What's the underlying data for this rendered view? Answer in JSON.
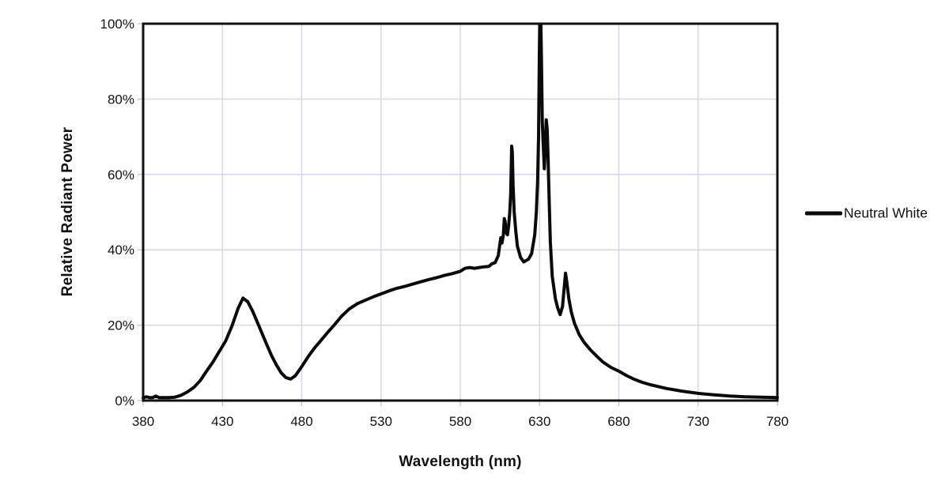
{
  "chart_data": {
    "type": "line",
    "title": "",
    "xlabel": "Wavelength (nm)",
    "ylabel": "Relative Radiant Power",
    "xlim": [
      380,
      780
    ],
    "ylim": [
      0,
      100
    ],
    "xticks": [
      380,
      430,
      480,
      530,
      580,
      630,
      680,
      730,
      780
    ],
    "yticks": [
      0,
      20,
      40,
      60,
      80,
      100
    ],
    "ytick_labels": [
      "0%",
      "20%",
      "40%",
      "60%",
      "80%",
      "100%"
    ],
    "grid": true,
    "legend_position": "right",
    "series": [
      {
        "name": "Neutral White",
        "color": "#0a0a0a",
        "points": [
          [
            380,
            0.7
          ],
          [
            382,
            1.0
          ],
          [
            384,
            0.8
          ],
          [
            386,
            0.8
          ],
          [
            388,
            1.2
          ],
          [
            390,
            0.8
          ],
          [
            393,
            0.8
          ],
          [
            396,
            0.8
          ],
          [
            400,
            0.9
          ],
          [
            404,
            1.4
          ],
          [
            408,
            2.3
          ],
          [
            412,
            3.5
          ],
          [
            416,
            5.3
          ],
          [
            420,
            7.8
          ],
          [
            424,
            10.2
          ],
          [
            428,
            13.0
          ],
          [
            432,
            15.8
          ],
          [
            436,
            19.8
          ],
          [
            440,
            24.6
          ],
          [
            443,
            27.2
          ],
          [
            446,
            26.2
          ],
          [
            449,
            23.8
          ],
          [
            452,
            20.8
          ],
          [
            455,
            17.8
          ],
          [
            458,
            14.8
          ],
          [
            461,
            11.9
          ],
          [
            464,
            9.5
          ],
          [
            467,
            7.4
          ],
          [
            470,
            6.1
          ],
          [
            473,
            5.7
          ],
          [
            476,
            6.6
          ],
          [
            480,
            9.0
          ],
          [
            484,
            11.6
          ],
          [
            488,
            13.9
          ],
          [
            492,
            15.9
          ],
          [
            496,
            17.9
          ],
          [
            500,
            19.8
          ],
          [
            505,
            22.3
          ],
          [
            510,
            24.3
          ],
          [
            515,
            25.7
          ],
          [
            520,
            26.6
          ],
          [
            525,
            27.5
          ],
          [
            530,
            28.3
          ],
          [
            535,
            29.1
          ],
          [
            540,
            29.8
          ],
          [
            545,
            30.3
          ],
          [
            550,
            30.9
          ],
          [
            555,
            31.5
          ],
          [
            560,
            32.1
          ],
          [
            565,
            32.6
          ],
          [
            570,
            33.2
          ],
          [
            575,
            33.7
          ],
          [
            580,
            34.3
          ],
          [
            583,
            35.1
          ],
          [
            586,
            35.3
          ],
          [
            589,
            35.1
          ],
          [
            592,
            35.3
          ],
          [
            595,
            35.5
          ],
          [
            598,
            35.6
          ],
          [
            600,
            36.3
          ],
          [
            602,
            36.6
          ],
          [
            604,
            38.5
          ],
          [
            605,
            41.5
          ],
          [
            605.6,
            43.2
          ],
          [
            606.3,
            41.8
          ],
          [
            607.2,
            44.0
          ],
          [
            607.8,
            48.3
          ],
          [
            608.3,
            47.5
          ],
          [
            609,
            44.5
          ],
          [
            609.8,
            44.0
          ],
          [
            610.5,
            46.5
          ],
          [
            611.2,
            50.0
          ],
          [
            611.8,
            55.0
          ],
          [
            612.4,
            67.5
          ],
          [
            612.8,
            66.0
          ],
          [
            613.3,
            57.0
          ],
          [
            614,
            50.0
          ],
          [
            615,
            45.0
          ],
          [
            616,
            41.0
          ],
          [
            618,
            38.0
          ],
          [
            620,
            36.8
          ],
          [
            623,
            37.5
          ],
          [
            625,
            39.0
          ],
          [
            627,
            44.0
          ],
          [
            628,
            50.0
          ],
          [
            628.8,
            58.0
          ],
          [
            629.4,
            70.0
          ],
          [
            629.9,
            92.0
          ],
          [
            630.1,
            100.0
          ],
          [
            630.8,
            100.0
          ],
          [
            631.2,
            90.0
          ],
          [
            631.7,
            74.0
          ],
          [
            632.2,
            69.0
          ],
          [
            633,
            61.5
          ],
          [
            633.7,
            68.0
          ],
          [
            634.2,
            74.5
          ],
          [
            634.8,
            72.0
          ],
          [
            635.4,
            64.0
          ],
          [
            636,
            54.0
          ],
          [
            636.8,
            42.0
          ],
          [
            638,
            33.0
          ],
          [
            640,
            27.0
          ],
          [
            641.5,
            24.5
          ],
          [
            643,
            22.8
          ],
          [
            644.5,
            25.0
          ],
          [
            645.8,
            31.0
          ],
          [
            646.4,
            33.8
          ],
          [
            647.2,
            31.5
          ],
          [
            648.5,
            27.0
          ],
          [
            650,
            23.5
          ],
          [
            652,
            20.5
          ],
          [
            655,
            17.5
          ],
          [
            658,
            15.5
          ],
          [
            662,
            13.5
          ],
          [
            666,
            11.8
          ],
          [
            670,
            10.2
          ],
          [
            675,
            8.8
          ],
          [
            680,
            7.8
          ],
          [
            685,
            6.6
          ],
          [
            690,
            5.6
          ],
          [
            695,
            4.8
          ],
          [
            700,
            4.2
          ],
          [
            710,
            3.2
          ],
          [
            720,
            2.5
          ],
          [
            730,
            1.9
          ],
          [
            740,
            1.5
          ],
          [
            750,
            1.2
          ],
          [
            760,
            1.0
          ],
          [
            770,
            0.9
          ],
          [
            780,
            0.8
          ]
        ]
      }
    ]
  },
  "colors": {
    "background": "#ffffff",
    "line": "#0a0a0a",
    "grid": "#d2d2e4",
    "outside_tick": "#c3c3d6",
    "border": "#111111",
    "text": "#111111"
  }
}
